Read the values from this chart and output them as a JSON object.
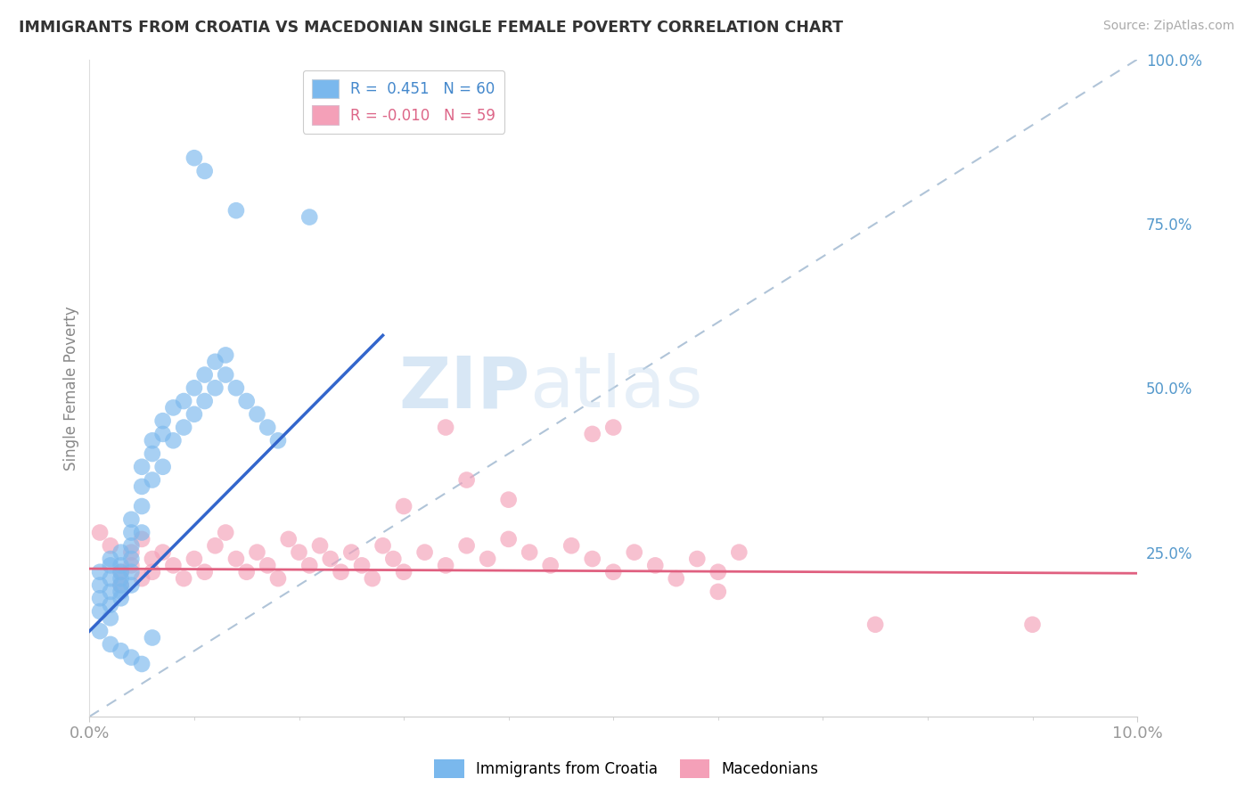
{
  "title": "IMMIGRANTS FROM CROATIA VS MACEDONIAN SINGLE FEMALE POVERTY CORRELATION CHART",
  "source": "Source: ZipAtlas.com",
  "ylabel": "Single Female Poverty",
  "legend_blue_label": "R =  0.451   N = 60",
  "legend_pink_label": "R = -0.010   N = 59",
  "blue_color": "#7ab8ed",
  "pink_color": "#f4a0b8",
  "blue_line_color": "#3366cc",
  "pink_line_color": "#e06080",
  "ref_line_color": "#b0c4d8",
  "grid_color": "#d8e8f0",
  "background_color": "#ffffff",
  "xlim": [
    0.0,
    0.1
  ],
  "ylim": [
    0.0,
    1.0
  ],
  "blue_label_color": "#4488cc",
  "pink_label_color": "#dd6688",
  "right_axis_color": "#5599cc",
  "blue_x": [
    0.001,
    0.001,
    0.001,
    0.001,
    0.002,
    0.002,
    0.002,
    0.002,
    0.002,
    0.002,
    0.003,
    0.003,
    0.003,
    0.003,
    0.003,
    0.003,
    0.003,
    0.004,
    0.004,
    0.004,
    0.004,
    0.004,
    0.004,
    0.005,
    0.005,
    0.005,
    0.005,
    0.006,
    0.006,
    0.006,
    0.007,
    0.007,
    0.007,
    0.008,
    0.008,
    0.009,
    0.009,
    0.01,
    0.01,
    0.011,
    0.011,
    0.012,
    0.012,
    0.013,
    0.013,
    0.014,
    0.015,
    0.016,
    0.017,
    0.018,
    0.01,
    0.011,
    0.014,
    0.021,
    0.001,
    0.002,
    0.003,
    0.004,
    0.005,
    0.006
  ],
  "blue_y": [
    0.2,
    0.22,
    0.18,
    0.16,
    0.21,
    0.19,
    0.17,
    0.23,
    0.15,
    0.24,
    0.22,
    0.2,
    0.18,
    0.25,
    0.23,
    0.21,
    0.19,
    0.26,
    0.24,
    0.22,
    0.28,
    0.2,
    0.3,
    0.32,
    0.35,
    0.28,
    0.38,
    0.4,
    0.42,
    0.36,
    0.43,
    0.45,
    0.38,
    0.47,
    0.42,
    0.48,
    0.44,
    0.5,
    0.46,
    0.48,
    0.52,
    0.5,
    0.54,
    0.52,
    0.55,
    0.5,
    0.48,
    0.46,
    0.44,
    0.42,
    0.85,
    0.83,
    0.77,
    0.76,
    0.13,
    0.11,
    0.1,
    0.09,
    0.08,
    0.12
  ],
  "pink_x": [
    0.001,
    0.002,
    0.003,
    0.003,
    0.004,
    0.004,
    0.005,
    0.005,
    0.006,
    0.006,
    0.007,
    0.008,
    0.009,
    0.01,
    0.011,
    0.012,
    0.013,
    0.014,
    0.015,
    0.016,
    0.017,
    0.018,
    0.019,
    0.02,
    0.021,
    0.022,
    0.023,
    0.024,
    0.025,
    0.026,
    0.027,
    0.028,
    0.029,
    0.03,
    0.032,
    0.034,
    0.036,
    0.038,
    0.04,
    0.042,
    0.044,
    0.046,
    0.048,
    0.05,
    0.052,
    0.054,
    0.056,
    0.058,
    0.06,
    0.062,
    0.034,
    0.048,
    0.036,
    0.06,
    0.075,
    0.09,
    0.05,
    0.04,
    0.03
  ],
  "pink_y": [
    0.28,
    0.26,
    0.22,
    0.2,
    0.25,
    0.23,
    0.27,
    0.21,
    0.24,
    0.22,
    0.25,
    0.23,
    0.21,
    0.24,
    0.22,
    0.26,
    0.28,
    0.24,
    0.22,
    0.25,
    0.23,
    0.21,
    0.27,
    0.25,
    0.23,
    0.26,
    0.24,
    0.22,
    0.25,
    0.23,
    0.21,
    0.26,
    0.24,
    0.22,
    0.25,
    0.23,
    0.26,
    0.24,
    0.27,
    0.25,
    0.23,
    0.26,
    0.24,
    0.22,
    0.25,
    0.23,
    0.21,
    0.24,
    0.22,
    0.25,
    0.44,
    0.43,
    0.36,
    0.19,
    0.14,
    0.14,
    0.44,
    0.33,
    0.32
  ],
  "blue_trend_x": [
    0.0,
    0.028
  ],
  "blue_trend_y": [
    0.13,
    0.58
  ],
  "pink_trend_x": [
    0.0,
    0.1
  ],
  "pink_trend_y": [
    0.225,
    0.218
  ],
  "ref_line_x": [
    0.0,
    0.1
  ],
  "ref_line_y": [
    0.0,
    1.0
  ]
}
